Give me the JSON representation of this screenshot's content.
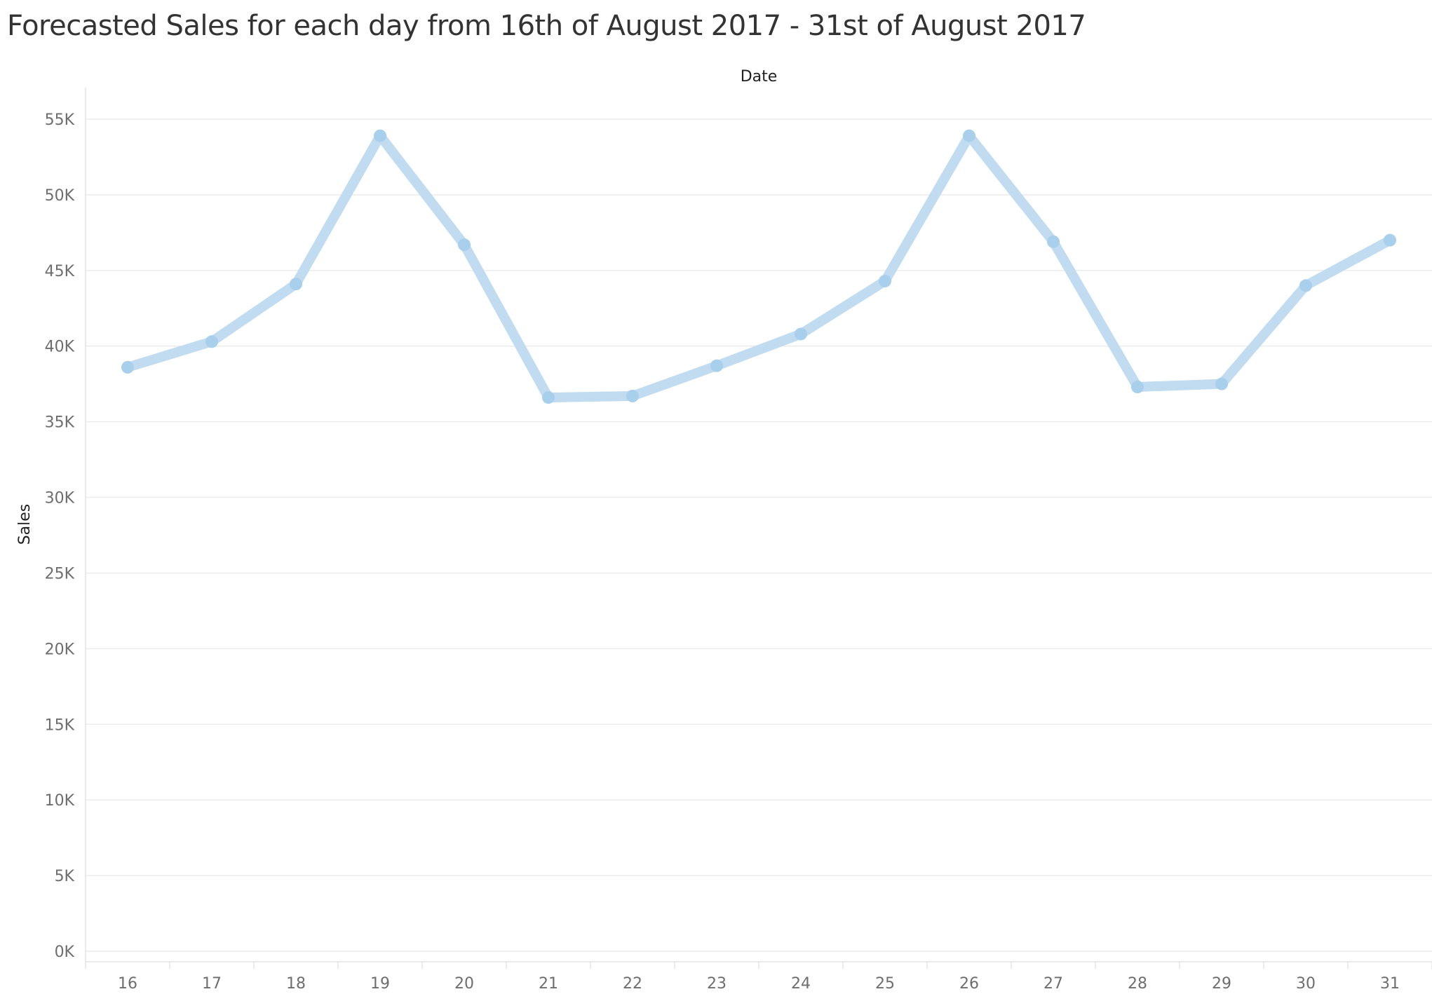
{
  "chart_data": {
    "type": "line",
    "title": "Forecasted Sales for each day from 16th of August 2017 - 31st of August 2017",
    "xlabel": "Date",
    "ylabel": "Sales",
    "categories": [
      "16",
      "17",
      "18",
      "19",
      "20",
      "21",
      "22",
      "23",
      "24",
      "25",
      "26",
      "27",
      "28",
      "29",
      "30",
      "31"
    ],
    "series": [
      {
        "values": [
          38600,
          40300,
          44100,
          53900,
          46700,
          36600,
          36700,
          38700,
          40800,
          44300,
          53900,
          46900,
          37300,
          37500,
          44000,
          47000
        ]
      }
    ],
    "ylim": [
      0,
      57000
    ],
    "yticks": [
      0,
      5000,
      10000,
      15000,
      20000,
      25000,
      30000,
      35000,
      40000,
      45000,
      50000,
      55000
    ],
    "ytick_labels": [
      "0K",
      "5K",
      "10K",
      "15K",
      "20K",
      "25K",
      "30K",
      "35K",
      "40K",
      "45K",
      "50K",
      "55K"
    ],
    "grid": true,
    "legend": "none",
    "colors": {
      "line": "#c1dcf0",
      "marker": "#a8cfec",
      "grid": "#ececec",
      "axis": "#e3e3e3",
      "tick_text": "#6e6e6e",
      "title_text": "#333333"
    }
  }
}
